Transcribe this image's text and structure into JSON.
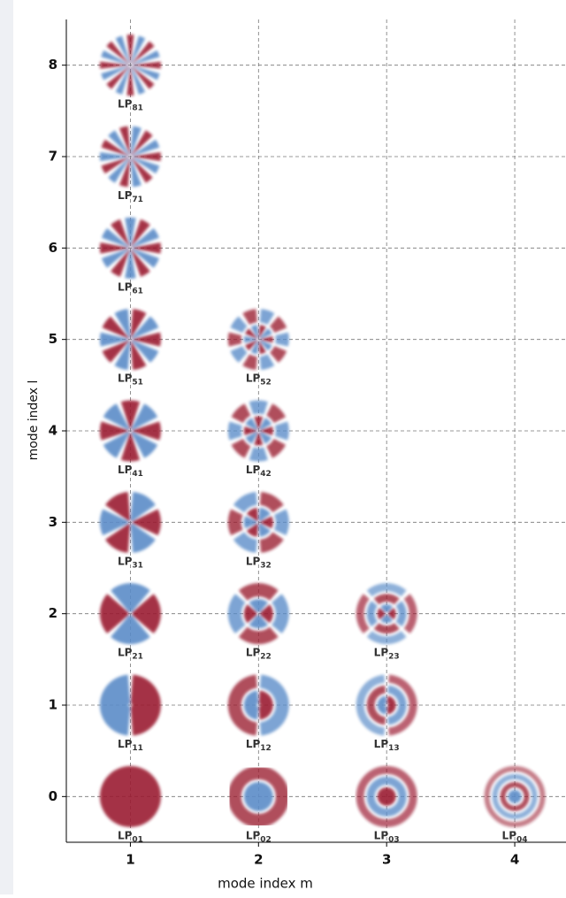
{
  "chart_data": {
    "type": "scatter",
    "x_label": "mode index m",
    "y_label": "mode index l",
    "xlim": [
      0.5,
      4.4
    ],
    "ylim": [
      -0.5,
      8.5
    ],
    "xticks": [
      1,
      2,
      3,
      4
    ],
    "yticks": [
      0,
      1,
      2,
      3,
      4,
      5,
      6,
      7,
      8
    ],
    "grid": true,
    "colors": [
      "#9b1b30",
      "#5b8cc8"
    ],
    "points": [
      {
        "x": 1,
        "y": 0,
        "label": [
          "LP",
          "01"
        ]
      },
      {
        "x": 1,
        "y": 1,
        "label": [
          "LP",
          "11"
        ]
      },
      {
        "x": 1,
        "y": 2,
        "label": [
          "LP",
          "21"
        ]
      },
      {
        "x": 1,
        "y": 3,
        "label": [
          "LP",
          "31"
        ]
      },
      {
        "x": 1,
        "y": 4,
        "label": [
          "LP",
          "41"
        ]
      },
      {
        "x": 1,
        "y": 5,
        "label": [
          "LP",
          "51"
        ]
      },
      {
        "x": 1,
        "y": 6,
        "label": [
          "LP",
          "61"
        ]
      },
      {
        "x": 1,
        "y": 7,
        "label": [
          "LP",
          "71"
        ]
      },
      {
        "x": 1,
        "y": 8,
        "label": [
          "LP",
          "81"
        ]
      },
      {
        "x": 2,
        "y": 0,
        "label": [
          "LP",
          "02"
        ]
      },
      {
        "x": 2,
        "y": 1,
        "label": [
          "LP",
          "12"
        ]
      },
      {
        "x": 2,
        "y": 2,
        "label": [
          "LP",
          "22"
        ]
      },
      {
        "x": 2,
        "y": 3,
        "label": [
          "LP",
          "32"
        ]
      },
      {
        "x": 2,
        "y": 4,
        "label": [
          "LP",
          "42"
        ]
      },
      {
        "x": 2,
        "y": 5,
        "label": [
          "LP",
          "52"
        ]
      },
      {
        "x": 3,
        "y": 0,
        "label": [
          "LP",
          "03"
        ]
      },
      {
        "x": 3,
        "y": 1,
        "label": [
          "LP",
          "13"
        ]
      },
      {
        "x": 3,
        "y": 2,
        "label": [
          "LP",
          "23"
        ]
      },
      {
        "x": 4,
        "y": 0,
        "label": [
          "LP",
          "04"
        ]
      }
    ]
  }
}
